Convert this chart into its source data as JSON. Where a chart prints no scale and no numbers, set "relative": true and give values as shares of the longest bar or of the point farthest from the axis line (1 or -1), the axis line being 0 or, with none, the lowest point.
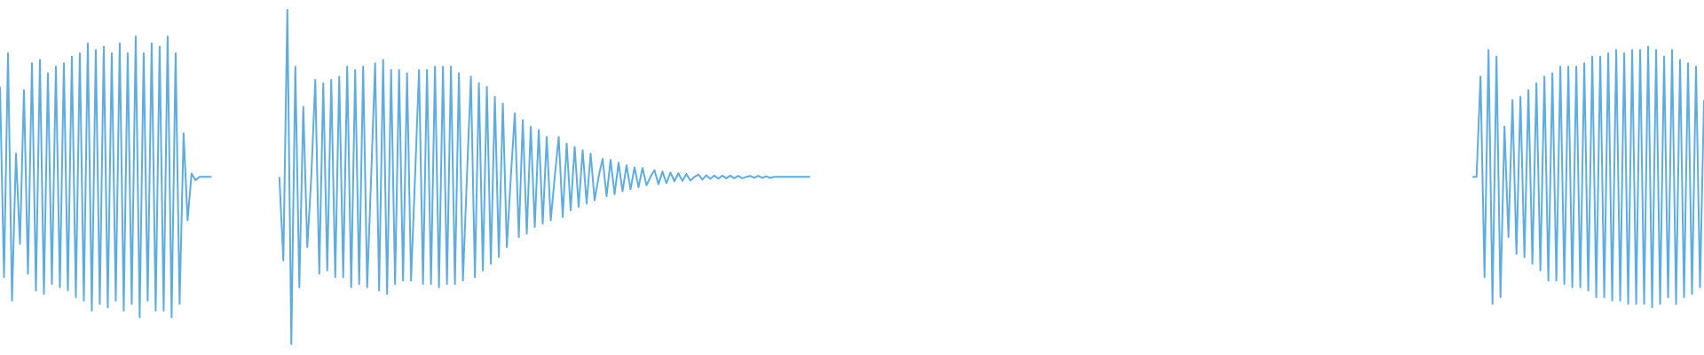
{
  "chart_data": {
    "type": "line",
    "relative": true,
    "categories": [
      null,
      null,
      null,
      null,
      null,
      null,
      null,
      null,
      null,
      null,
      null,
      null,
      null,
      null,
      null,
      null,
      null,
      null,
      null,
      null,
      null,
      null,
      null,
      null,
      null,
      null,
      null,
      null,
      null,
      null,
      null,
      null,
      null,
      null,
      null,
      null,
      null,
      null,
      null,
      null,
      null,
      null,
      null,
      null,
      null,
      null,
      null,
      null,
      null,
      null,
      null,
      null,
      null,
      null,
      null,
      null,
      null,
      null,
      null,
      null,
      null,
      null,
      null,
      null,
      null,
      null,
      null,
      null,
      null,
      null,
      null,
      null,
      null,
      null,
      null,
      null,
      null,
      null,
      null,
      null,
      null,
      null,
      null,
      null,
      null,
      null,
      null,
      null,
      null,
      null,
      null,
      null,
      null,
      null,
      null,
      null,
      null,
      null,
      null,
      null,
      null,
      null,
      null,
      null,
      null,
      null,
      null,
      null,
      null,
      null,
      null,
      null,
      null,
      null,
      null,
      null,
      null,
      null,
      null,
      null,
      null,
      null,
      null,
      null,
      null,
      null,
      null,
      null,
      null,
      null,
      null,
      null,
      null,
      null,
      null,
      null,
      null,
      null,
      null,
      null,
      null,
      null,
      null,
      null,
      null,
      null,
      null,
      null,
      null,
      null,
      null,
      null,
      null,
      null,
      null,
      null,
      null,
      null,
      null,
      null,
      null,
      null,
      null,
      null,
      null,
      null,
      null,
      null,
      null,
      null,
      null,
      null,
      null,
      null,
      null,
      null,
      null,
      null,
      null,
      null,
      null,
      null,
      null,
      null,
      null,
      null,
      null,
      null,
      null,
      null,
      null,
      null,
      null,
      null,
      null,
      null,
      null,
      null,
      null,
      null,
      null,
      null,
      null,
      null,
      null,
      null,
      null,
      null,
      null,
      null,
      null,
      null,
      null,
      null,
      null,
      null,
      null,
      null,
      null,
      null,
      null,
      null,
      null,
      null,
      null,
      null,
      null,
      null,
      null,
      null,
      null,
      null,
      null,
      null,
      null,
      null,
      null,
      null,
      null,
      null,
      null,
      null,
      null,
      null,
      null,
      null,
      null,
      null,
      null,
      null,
      null,
      null,
      null,
      null,
      null,
      null,
      null,
      null,
      null,
      null,
      null,
      null,
      null,
      null,
      null,
      null,
      null,
      null,
      null,
      null,
      null,
      null,
      null,
      null,
      null,
      null,
      null,
      null,
      null,
      null,
      null,
      null,
      null,
      null,
      null,
      null,
      null,
      null,
      null,
      null,
      null,
      null,
      null,
      null,
      null,
      null,
      null,
      null,
      null,
      null,
      null,
      null,
      null,
      null,
      null,
      null,
      null,
      null,
      null,
      null,
      null,
      null,
      null,
      null,
      null,
      null,
      null,
      null,
      null,
      null,
      null,
      null,
      null,
      null,
      null,
      null,
      null,
      null,
      null,
      null,
      null,
      null,
      null,
      null,
      null,
      null,
      null,
      null,
      null,
      null,
      null,
      null,
      null,
      null,
      null,
      null,
      null,
      null,
      null,
      null,
      null,
      null,
      null,
      null,
      null,
      null,
      null,
      null,
      null,
      null,
      null,
      null,
      null,
      null,
      null,
      null,
      null,
      null,
      null,
      null,
      null,
      null,
      null,
      null,
      null,
      null,
      null,
      null,
      null,
      null,
      null,
      null,
      null,
      null,
      null,
      null,
      null,
      null,
      null,
      null,
      null,
      null,
      null,
      null,
      null,
      null,
      null,
      null,
      null,
      null,
      null,
      null,
      null,
      null,
      null,
      null,
      null,
      null,
      null,
      null,
      null,
      null,
      null,
      null,
      null,
      null,
      null,
      null,
      null,
      null,
      null,
      null,
      null,
      null,
      null,
      null,
      null,
      null
    ],
    "series": [
      {
        "color": "#5dade2",
        "values": [
          0.77,
          0.2,
          0.87,
          0.13,
          0.57,
          0.3,
          0.76,
          0.21,
          0.84,
          0.16,
          0.85,
          0.15,
          0.81,
          0.18,
          0.83,
          0.17,
          0.84,
          0.16,
          0.86,
          0.14,
          0.87,
          0.13,
          0.9,
          0.1,
          0.88,
          0.12,
          0.89,
          0.11,
          0.87,
          0.13,
          0.9,
          0.1,
          0.87,
          0.12,
          0.92,
          0.08,
          0.87,
          0.13,
          0.9,
          0.1,
          0.89,
          0.1,
          0.92,
          0.08,
          0.87,
          0.12,
          0.63,
          0.37,
          0.51,
          0.49,
          0.5,
          0.5,
          0.5,
          0.5,
          null,
          null,
          null,
          null,
          null,
          null,
          null,
          null,
          null,
          null,
          null,
          null,
          null,
          null,
          null,
          null,
          null,
          null,
          null,
          null,
          null,
          null,
          null,
          null,
          null,
          null,
          null,
          null,
          null,
          null,
          null,
          null,
          null,
          null,
          null,
          null,
          null,
          null,
          null,
          null,
          null,
          null,
          null,
          null,
          null,
          null,
          null,
          null,
          null,
          null,
          null,
          null,
          null,
          null,
          null,
          null,
          null,
          null,
          null,
          null,
          null,
          null,
          null,
          null,
          null,
          null,
          null,
          null,
          null,
          null,
          null,
          null,
          null,
          null,
          null,
          null,
          null,
          null,
          null,
          null,
          null,
          null,
          null,
          null,
          null,
          null,
          null,
          null,
          null,
          null,
          null,
          null,
          null,
          null,
          null,
          null,
          null,
          null,
          null,
          null,
          null,
          null,
          null,
          null,
          null,
          null,
          null,
          null,
          null,
          null,
          null,
          null,
          null,
          null,
          null,
          null,
          null,
          null,
          null,
          null,
          null,
          null,
          null,
          null,
          null,
          null,
          null,
          null,
          null,
          null,
          null,
          null,
          null,
          null,
          null,
          null,
          null,
          null,
          null,
          null,
          null,
          null,
          null,
          null,
          null,
          null,
          null,
          null,
          null,
          null,
          null,
          null,
          null,
          null,
          null,
          null,
          null,
          null,
          null,
          null,
          null,
          null,
          null,
          null,
          null,
          null,
          null,
          null,
          null,
          null,
          null,
          null,
          null,
          null,
          null,
          null,
          null,
          null,
          null,
          null,
          null,
          null,
          null,
          null,
          null,
          null,
          null,
          null,
          null,
          null,
          null,
          null,
          null,
          null,
          null,
          null,
          null,
          null,
          null,
          null,
          null,
          null,
          null,
          null,
          null,
          null,
          null,
          null,
          null,
          null,
          null,
          null,
          null,
          null,
          null,
          null,
          null,
          null,
          null,
          null,
          null,
          null,
          null,
          null,
          null,
          null,
          null,
          null,
          null,
          null,
          null,
          null,
          null,
          null,
          null,
          null,
          null,
          null,
          null,
          null,
          null,
          null,
          null,
          null,
          null,
          null,
          null,
          null,
          null,
          null,
          null,
          null,
          null,
          null,
          null,
          null,
          null,
          null,
          null,
          null,
          null,
          null,
          null,
          null,
          null,
          null,
          null,
          null,
          null,
          null,
          null,
          null,
          null,
          null,
          null,
          null,
          null,
          null,
          null,
          null,
          null,
          null,
          null,
          null,
          null,
          null,
          null,
          null,
          null,
          null,
          null,
          null,
          null,
          null,
          null,
          null,
          null,
          null,
          null,
          null,
          null,
          null,
          null,
          null,
          null,
          null,
          null,
          null,
          null,
          null,
          null,
          null,
          null,
          null,
          null,
          null,
          null,
          null,
          null,
          null,
          null,
          null,
          null,
          null,
          null,
          null,
          null,
          null,
          null,
          null,
          null,
          null,
          null,
          null,
          null,
          null,
          null,
          null,
          null,
          null,
          null,
          null,
          null,
          null,
          null,
          null,
          null,
          null,
          null,
          null,
          null,
          null,
          null,
          null,
          null,
          null,
          null,
          null,
          null,
          null,
          null,
          null,
          null,
          null,
          null,
          null,
          null,
          null,
          null,
          null,
          null,
          null,
          null,
          null
        ]
      },
      {
        "color": "#5dade2",
        "values": [
          null,
          null,
          null,
          null,
          null,
          null,
          null,
          null,
          null,
          null,
          null,
          null,
          null,
          null,
          null,
          null,
          null,
          null,
          null,
          null,
          null,
          null,
          null,
          null,
          null,
          null,
          null,
          null,
          null,
          null,
          null,
          null,
          null,
          null,
          null,
          null,
          null,
          null,
          null,
          null,
          null,
          null,
          null,
          null,
          null,
          null,
          null,
          null,
          null,
          null,
          null,
          null,
          null,
          null,
          null,
          null,
          null,
          null,
          null,
          null,
          null,
          null,
          null,
          null,
          null,
          null,
          null,
          null,
          null,
          null,
          0.5,
          0.25,
          1,
          0,
          0.83,
          0.17,
          0.71,
          0.29,
          0.5,
          0.79,
          0.21,
          0.78,
          0.22,
          0.79,
          0.2,
          0.8,
          0.2,
          0.83,
          0.17,
          0.82,
          0.18,
          0.83,
          0.17,
          0.5,
          0.84,
          0.16,
          0.85,
          0.15,
          0.82,
          0.18,
          0.82,
          0.19,
          0.81,
          0.19,
          0.5,
          0.82,
          0.18,
          0.82,
          0.18,
          0.83,
          0.17,
          0.83,
          0.18,
          0.83,
          0.18,
          0.81,
          0.19,
          0.5,
          0.8,
          0.2,
          0.78,
          0.22,
          0.77,
          0.24,
          0.74,
          0.26,
          0.72,
          0.29,
          0.5,
          0.69,
          0.32,
          0.67,
          0.33,
          0.65,
          0.35,
          0.64,
          0.36,
          0.62,
          0.37,
          0.5,
          0.62,
          0.38,
          0.6,
          0.4,
          0.59,
          0.41,
          0.58,
          0.42,
          0.57,
          0.43,
          0.5,
          0.554,
          0.442,
          0.551,
          0.448,
          0.543,
          0.457,
          0.535,
          0.463,
          0.529,
          0.469,
          0.527,
          0.475,
          0.5,
          0.52,
          0.478,
          0.516,
          0.481,
          0.513,
          0.487,
          0.511,
          0.488,
          0.509,
          0.489,
          0.5,
          0.507,
          0.492,
          0.505,
          0.494,
          0.504,
          0.495,
          0.504,
          0.496,
          0.504,
          0.496,
          0.503,
          0.496,
          0.5,
          0.503,
          0.497,
          0.503,
          0.497,
          0.502,
          0.497,
          0.5,
          0.5,
          0.5,
          0.5,
          0.5,
          0.5,
          0.5,
          0.5,
          0.5,
          0.5,
          null,
          null,
          null,
          null,
          null,
          null,
          null,
          null,
          null,
          null,
          null,
          null,
          null,
          null,
          null,
          null,
          null,
          null,
          null,
          null,
          null,
          null,
          null,
          null,
          null,
          null,
          null,
          null,
          null,
          null,
          null,
          null,
          null,
          null,
          null,
          null,
          null,
          null,
          null,
          null,
          null,
          null,
          null,
          null,
          null,
          null,
          null,
          null,
          null,
          null,
          null,
          null,
          null,
          null,
          null,
          null,
          null,
          null,
          null,
          null,
          null,
          null,
          null,
          null,
          null,
          null,
          null,
          null,
          null,
          null,
          null,
          null,
          null,
          null,
          null,
          null,
          null,
          null,
          null,
          null,
          null,
          null,
          null,
          null,
          null,
          null,
          null,
          null,
          null,
          null,
          null,
          null,
          null,
          null,
          null,
          null,
          null,
          null,
          null,
          null,
          null,
          null,
          null,
          null,
          null,
          null,
          null,
          null,
          null,
          null,
          null,
          null,
          null,
          null,
          null,
          null,
          null,
          null,
          null,
          null,
          null,
          null,
          null,
          null,
          null,
          null,
          null,
          null,
          null,
          null,
          null,
          null,
          null,
          null,
          null,
          null,
          null,
          null,
          null,
          null,
          null,
          null,
          null,
          null,
          null,
          null,
          null,
          null,
          null,
          null,
          null,
          null,
          null,
          null,
          null,
          null,
          null,
          null,
          null,
          null,
          null,
          null,
          null,
          null,
          null,
          null,
          null,
          null,
          null,
          null,
          null,
          null,
          null,
          null,
          null,
          null,
          null,
          null,
          null,
          null,
          null,
          null,
          null,
          null,
          null,
          null,
          null,
          null,
          null,
          null,
          null,
          null,
          null,
          null,
          null,
          null,
          null,
          null,
          null,
          null,
          null,
          null,
          null,
          null,
          null,
          null,
          null,
          null,
          null,
          null,
          null,
          null,
          null,
          null,
          null,
          null,
          null,
          null,
          null,
          null,
          null,
          null,
          null,
          null
        ]
      },
      {
        "color": "#5dade2",
        "values": [
          null,
          null,
          null,
          null,
          null,
          null,
          null,
          null,
          null,
          null,
          null,
          null,
          null,
          null,
          null,
          null,
          null,
          null,
          null,
          null,
          null,
          null,
          null,
          null,
          null,
          null,
          null,
          null,
          null,
          null,
          null,
          null,
          null,
          null,
          null,
          null,
          null,
          null,
          null,
          null,
          null,
          null,
          null,
          null,
          null,
          null,
          null,
          null,
          null,
          null,
          null,
          null,
          null,
          null,
          null,
          null,
          null,
          null,
          null,
          null,
          null,
          null,
          null,
          null,
          null,
          null,
          null,
          null,
          null,
          null,
          null,
          null,
          null,
          null,
          null,
          null,
          null,
          null,
          null,
          null,
          null,
          null,
          null,
          null,
          null,
          null,
          null,
          null,
          null,
          null,
          null,
          null,
          null,
          null,
          null,
          null,
          null,
          null,
          null,
          null,
          null,
          null,
          null,
          null,
          null,
          null,
          null,
          null,
          null,
          null,
          null,
          null,
          null,
          null,
          null,
          null,
          null,
          null,
          null,
          null,
          null,
          null,
          null,
          null,
          null,
          null,
          null,
          null,
          null,
          null,
          null,
          null,
          null,
          null,
          null,
          null,
          null,
          null,
          null,
          null,
          null,
          null,
          null,
          null,
          null,
          null,
          null,
          null,
          null,
          null,
          null,
          null,
          null,
          null,
          null,
          null,
          null,
          null,
          null,
          null,
          null,
          null,
          null,
          null,
          null,
          null,
          null,
          null,
          null,
          null,
          null,
          null,
          null,
          null,
          null,
          null,
          null,
          null,
          null,
          null,
          null,
          null,
          null,
          null,
          null,
          null,
          null,
          null,
          null,
          null,
          null,
          null,
          null,
          null,
          null,
          null,
          null,
          null,
          null,
          null,
          null,
          null,
          null,
          null,
          null,
          null,
          null,
          null,
          null,
          null,
          null,
          null,
          null,
          null,
          null,
          null,
          null,
          null,
          null,
          null,
          null,
          null,
          null,
          null,
          null,
          null,
          null,
          null,
          null,
          null,
          null,
          null,
          null,
          null,
          null,
          null,
          null,
          null,
          null,
          null,
          null,
          null,
          null,
          null,
          null,
          null,
          null,
          null,
          null,
          null,
          null,
          null,
          null,
          null,
          null,
          null,
          null,
          null,
          null,
          null,
          null,
          null,
          null,
          null,
          null,
          null,
          null,
          null,
          null,
          null,
          null,
          null,
          null,
          null,
          null,
          null,
          null,
          null,
          null,
          null,
          null,
          null,
          null,
          null,
          null,
          null,
          null,
          null,
          null,
          null,
          null,
          null,
          null,
          null,
          null,
          null,
          null,
          null,
          null,
          null,
          null,
          null,
          null,
          null,
          null,
          null,
          null,
          null,
          null,
          null,
          null,
          null,
          null,
          null,
          null,
          null,
          null,
          null,
          null,
          null,
          null,
          null,
          null,
          null,
          null,
          null,
          null,
          null,
          null,
          null,
          null,
          null,
          null,
          null,
          null,
          null,
          null,
          null,
          null,
          null,
          null,
          null,
          null,
          null,
          null,
          null,
          null,
          null,
          null,
          null,
          null,
          null,
          null,
          null,
          null,
          null,
          null,
          null,
          null,
          null,
          null,
          null,
          null,
          null,
          null,
          null,
          null,
          null,
          null,
          0.5,
          0.5,
          0.8,
          0.2,
          0.88,
          0.12,
          0.86,
          0.14,
          0.65,
          0.32,
          0.73,
          0.27,
          0.74,
          0.26,
          0.76,
          0.24,
          0.78,
          0.22,
          0.8,
          0.19,
          0.81,
          0.19,
          0.83,
          0.18,
          0.83,
          0.17,
          0.83,
          0.17,
          0.84,
          0.16,
          0.86,
          0.14,
          0.86,
          0.14,
          0.87,
          0.13,
          0.88,
          0.13,
          0.87,
          0.12,
          0.88,
          0.12,
          0.88,
          0.12,
          0.89,
          0.11,
          0.88,
          0.12,
          0.86,
          0.14,
          0.88,
          0.12,
          0.85,
          0.14,
          0.84,
          0.15,
          0.83,
          0.17,
          0.73
        ]
      }
    ]
  }
}
